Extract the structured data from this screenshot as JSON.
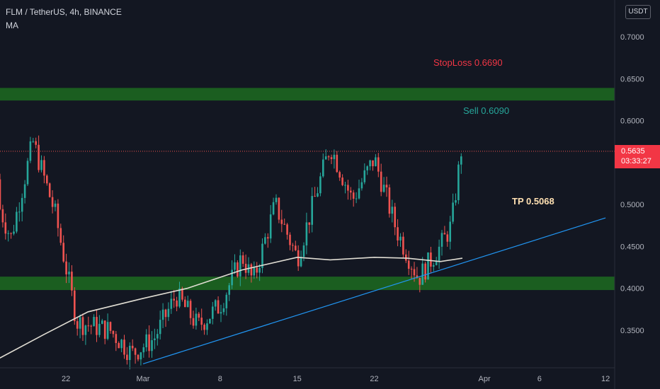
{
  "header": {
    "title": "FLM / TetherUS, 4h, BINANCE",
    "indicator": "MA",
    "currency": "USDT"
  },
  "price_tag": {
    "price": "0.5635",
    "countdown": "03:33:27"
  },
  "colors": {
    "background": "#131722",
    "candle_up": "#26a69a",
    "candle_down": "#ef5350",
    "zone_fill": "#1b5e20",
    "trend_line": "#2196f3",
    "ma_line": "#e0ddd3",
    "stoploss_text": "#f23645",
    "sell_text": "#26a69a",
    "tp_text": "#ffe0b2"
  },
  "chart_data": {
    "type": "candlestick",
    "x_ticks": [
      "22",
      "Mar",
      "8",
      "15",
      "22",
      "Apr",
      "6",
      "12"
    ],
    "y_ticks": [
      "0.7000",
      "0.6500",
      "0.6000",
      "0.5500",
      "0.5000",
      "0.4500",
      "0.4000",
      "0.3500"
    ],
    "ylim": [
      0.31,
      0.735
    ],
    "last_price": 0.5635,
    "zones": [
      {
        "from": 0.624,
        "to": 0.639
      },
      {
        "from": 0.398,
        "to": 0.414
      }
    ],
    "annotations": [
      {
        "text": "StopLoss 0.6690",
        "value": 0.669,
        "kind": "stoploss"
      },
      {
        "text": "Sell 0.6090",
        "value": 0.609,
        "kind": "sell"
      },
      {
        "text": "TP 0.5068",
        "value": 0.5068,
        "kind": "tp"
      }
    ],
    "trend_line": {
      "from": [
        "Mar",
        0.31
      ],
      "to": [
        "Apr 12",
        0.484
      ]
    },
    "ma_series": [
      [
        "Feb 15",
        0.31
      ],
      [
        "Feb 20",
        0.345
      ],
      [
        "Feb 24",
        0.372
      ],
      [
        "Mar 1",
        0.388
      ],
      [
        "Mar 5",
        0.4
      ],
      [
        "Mar 10",
        0.422
      ],
      [
        "Mar 15",
        0.437
      ],
      [
        "Mar 18",
        0.434
      ],
      [
        "Mar 22",
        0.437
      ],
      [
        "Mar 25",
        0.436
      ],
      [
        "Mar 28",
        0.432
      ],
      [
        "Mar 30",
        0.436
      ]
    ],
    "price_path": [
      [
        "Feb 15",
        0.53
      ],
      [
        "Feb 17",
        0.46
      ],
      [
        "Feb 19",
        0.575
      ],
      [
        "Feb 21",
        0.49
      ],
      [
        "Feb 23",
        0.36
      ],
      [
        "Feb 26",
        0.35
      ],
      [
        "Feb 28",
        0.322
      ],
      [
        "Mar 2",
        0.34
      ],
      [
        "Mar 4",
        0.392
      ],
      [
        "Mar 6",
        0.355
      ],
      [
        "Mar 8",
        0.38
      ],
      [
        "Mar 10",
        0.438
      ],
      [
        "Mar 11",
        0.408
      ],
      [
        "Mar 13",
        0.5
      ],
      [
        "Mar 15",
        0.436
      ],
      [
        "Mar 18",
        0.57
      ],
      [
        "Mar 20",
        0.505
      ],
      [
        "Mar 22",
        0.555
      ],
      [
        "Mar 24",
        0.47
      ],
      [
        "Mar 26",
        0.412
      ],
      [
        "Mar 28",
        0.45
      ],
      [
        "Mar 29",
        0.475
      ],
      [
        "Mar 30",
        0.575
      ]
    ]
  }
}
